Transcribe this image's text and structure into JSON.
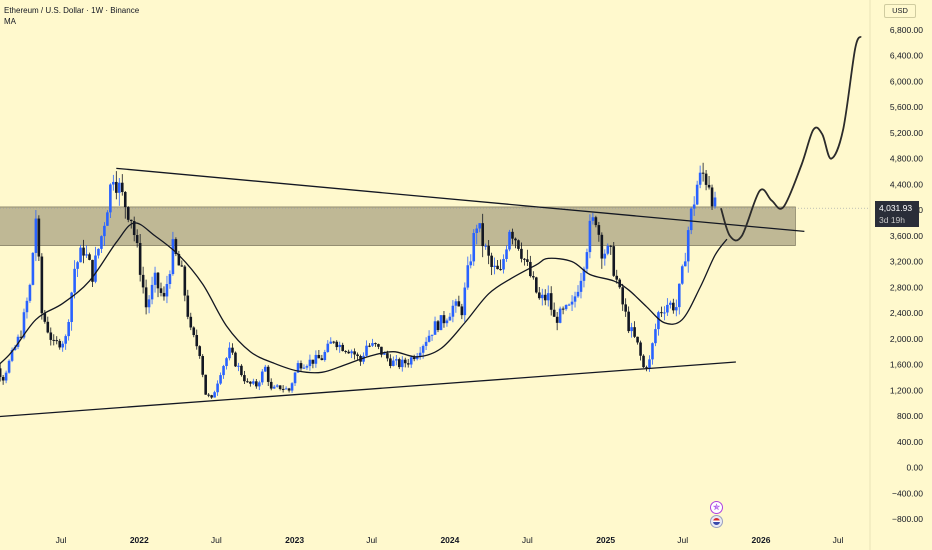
{
  "header": {
    "title": "Ethereum / U.S. Dollar · 1W · Binance",
    "indicator": "MA",
    "currency": "USD"
  },
  "price_tag": {
    "price": "4,031.93",
    "countdown": "3d 19h"
  },
  "colors": {
    "background": "#fff9cd",
    "candle_up": "#2962ff",
    "candle_down": "#131722",
    "ma_line": "#131722",
    "resistance_zone": "#8a8468",
    "trendline": "#131722"
  },
  "chart_data": {
    "type": "candlestick",
    "y_axis": {
      "min": -900,
      "max": 7000,
      "ticks": [
        "6,800.00",
        "6,400.00",
        "6,000.00",
        "5,600.00",
        "5,200.00",
        "4,800.00",
        "4,400.00",
        "4,000.00",
        "3,600.00",
        "3,200.00",
        "2,800.00",
        "2,400.00",
        "2,000.00",
        "1,600.00",
        "1,200.00",
        "800.00",
        "400.00",
        "0.00",
        "−400.00",
        "−800.00"
      ],
      "tick_values": [
        6800,
        6400,
        6000,
        5600,
        5200,
        4800,
        4400,
        4000,
        3600,
        3200,
        2800,
        2400,
        2000,
        1600,
        1200,
        800,
        400,
        0,
        -400,
        -800
      ]
    },
    "x_axis": {
      "labels": [
        "Jul",
        "2022",
        "Jul",
        "2023",
        "Jul",
        "2024",
        "Jul",
        "2025",
        "Jul",
        "2026",
        "Jul"
      ],
      "label_dates": [
        "2021-07",
        "2022-01",
        "2022-07",
        "2023-01",
        "2023-07",
        "2024-01",
        "2024-07",
        "2025-01",
        "2025-07",
        "2026-01",
        "2026-07"
      ],
      "bold": [
        false,
        true,
        false,
        true,
        false,
        true,
        false,
        true,
        false,
        true,
        false
      ],
      "range": [
        "2020-12",
        "2026-10"
      ]
    },
    "price_points": [
      [
        "2020-12-21",
        600
      ],
      [
        "2021-01-11",
        1100
      ],
      [
        "2021-02-01",
        1600
      ],
      [
        "2021-02-22",
        1400
      ],
      [
        "2021-03-15",
        1750
      ],
      [
        "2021-04-05",
        2100
      ],
      [
        "2021-04-26",
        2800
      ],
      [
        "2021-05-10",
        3900
      ],
      [
        "2021-05-24",
        2400
      ],
      [
        "2021-06-21",
        1900
      ],
      [
        "2021-07-19",
        2000
      ],
      [
        "2021-08-09",
        3100
      ],
      [
        "2021-08-30",
        3400
      ],
      [
        "2021-09-20",
        3000
      ],
      [
        "2021-10-11",
        3600
      ],
      [
        "2021-11-08",
        4600
      ],
      [
        "2021-11-29",
        4200
      ],
      [
        "2021-12-20",
        3900
      ],
      [
        "2022-01-10",
        3100
      ],
      [
        "2022-01-24",
        2500
      ],
      [
        "2022-02-14",
        2900
      ],
      [
        "2022-03-07",
        2600
      ],
      [
        "2022-03-28",
        3400
      ],
      [
        "2022-04-18",
        3000
      ],
      [
        "2022-05-09",
        2100
      ],
      [
        "2022-05-30",
        1800
      ],
      [
        "2022-06-13",
        1150
      ],
      [
        "2022-06-27",
        1050
      ],
      [
        "2022-07-18",
        1500
      ],
      [
        "2022-08-08",
        1800
      ],
      [
        "2022-08-29",
        1550
      ],
      [
        "2022-09-19",
        1300
      ],
      [
        "2022-10-10",
        1280
      ],
      [
        "2022-10-31",
        1550
      ],
      [
        "2022-11-14",
        1200
      ],
      [
        "2022-12-05",
        1250
      ],
      [
        "2022-12-26",
        1200
      ],
      [
        "2023-01-16",
        1600
      ],
      [
        "2023-02-13",
        1650
      ],
      [
        "2023-03-13",
        1700
      ],
      [
        "2023-04-10",
        2000
      ],
      [
        "2023-04-24",
        1900
      ],
      [
        "2023-05-22",
        1820
      ],
      [
        "2023-06-12",
        1650
      ],
      [
        "2023-06-26",
        1900
      ],
      [
        "2023-07-17",
        1880
      ],
      [
        "2023-08-21",
        1650
      ],
      [
        "2023-09-11",
        1600
      ],
      [
        "2023-10-02",
        1650
      ],
      [
        "2023-10-23",
        1800
      ],
      [
        "2023-11-13",
        2000
      ],
      [
        "2023-12-04",
        2200
      ],
      [
        "2023-12-25",
        2300
      ],
      [
        "2024-01-15",
        2500
      ],
      [
        "2024-02-05",
        2450
      ],
      [
        "2024-02-26",
        3300
      ],
      [
        "2024-03-11",
        3800
      ],
      [
        "2024-03-25",
        3500
      ],
      [
        "2024-04-15",
        3100
      ],
      [
        "2024-05-06",
        3000
      ],
      [
        "2024-05-27",
        3750
      ],
      [
        "2024-06-17",
        3500
      ],
      [
        "2024-07-08",
        3100
      ],
      [
        "2024-08-05",
        2600
      ],
      [
        "2024-08-26",
        2650
      ],
      [
        "2024-09-09",
        2300
      ],
      [
        "2024-09-30",
        2400
      ],
      [
        "2024-10-21",
        2500
      ],
      [
        "2024-11-11",
        3000
      ],
      [
        "2024-12-02",
        3700
      ],
      [
        "2024-12-16",
        3900
      ],
      [
        "2024-12-30",
        3400
      ],
      [
        "2025-01-20",
        3300
      ],
      [
        "2025-02-10",
        2700
      ],
      [
        "2025-03-03",
        2200
      ],
      [
        "2025-03-24",
        1900
      ],
      [
        "2025-04-07",
        1550
      ],
      [
        "2025-04-21",
        1650
      ],
      [
        "2025-05-12",
        2400
      ],
      [
        "2025-06-02",
        2550
      ],
      [
        "2025-06-23",
        2500
      ],
      [
        "2025-07-07",
        3000
      ],
      [
        "2025-07-21",
        3700
      ],
      [
        "2025-08-11",
        4400
      ],
      [
        "2025-08-25",
        4550
      ],
      [
        "2025-09-08",
        4450
      ],
      [
        "2025-09-22",
        4030
      ]
    ],
    "moving_average": [
      [
        "2020-12-21",
        1350
      ],
      [
        "2021-03-01",
        1750
      ],
      [
        "2021-05-03",
        2300
      ],
      [
        "2021-07-05",
        2550
      ],
      [
        "2021-09-06",
        2900
      ],
      [
        "2021-11-08",
        3500
      ],
      [
        "2021-12-20",
        3800
      ],
      [
        "2022-02-07",
        3600
      ],
      [
        "2022-04-04",
        3300
      ],
      [
        "2022-05-30",
        2850
      ],
      [
        "2022-07-25",
        2200
      ],
      [
        "2022-09-19",
        1800
      ],
      [
        "2022-11-14",
        1620
      ],
      [
        "2023-01-09",
        1500
      ],
      [
        "2023-03-06",
        1480
      ],
      [
        "2023-05-01",
        1600
      ],
      [
        "2023-06-26",
        1730
      ],
      [
        "2023-08-21",
        1800
      ],
      [
        "2023-10-16",
        1720
      ],
      [
        "2023-12-11",
        1850
      ],
      [
        "2024-02-05",
        2250
      ],
      [
        "2024-04-01",
        2700
      ],
      [
        "2024-05-27",
        2950
      ],
      [
        "2024-07-22",
        3150
      ],
      [
        "2024-08-19",
        3250
      ],
      [
        "2024-10-14",
        3200
      ],
      [
        "2024-11-25",
        3000
      ],
      [
        "2025-01-20",
        2900
      ],
      [
        "2025-02-24",
        2760
      ],
      [
        "2025-04-07",
        2500
      ],
      [
        "2025-05-19",
        2250
      ],
      [
        "2025-06-30",
        2300
      ],
      [
        "2025-08-11",
        2800
      ],
      [
        "2025-09-15",
        3300
      ],
      [
        "2025-10-13",
        3550
      ]
    ],
    "resistance_zone": {
      "from": "2020-12-01",
      "to": "2026-03-23",
      "low": 3450,
      "high": 4050
    },
    "trendlines": [
      {
        "name": "descending",
        "from": [
          "2021-11-08",
          4650
        ],
        "to": [
          "2026-04-13",
          3670
        ]
      },
      {
        "name": "ascending",
        "from": [
          "2020-12-01",
          760
        ],
        "to": [
          "2025-11-03",
          1640
        ]
      }
    ],
    "projection": [
      [
        "2025-09-29",
        4030
      ],
      [
        "2025-10-20",
        3600
      ],
      [
        "2025-11-17",
        3600
      ],
      [
        "2025-12-29",
        4300
      ],
      [
        "2026-01-26",
        4150
      ],
      [
        "2026-02-23",
        4050
      ],
      [
        "2026-04-06",
        4700
      ],
      [
        "2026-05-04",
        5250
      ],
      [
        "2026-05-25",
        5180
      ],
      [
        "2026-06-15",
        4800
      ],
      [
        "2026-07-13",
        5250
      ],
      [
        "2026-08-10",
        6500
      ],
      [
        "2026-08-24",
        6700
      ]
    ]
  }
}
